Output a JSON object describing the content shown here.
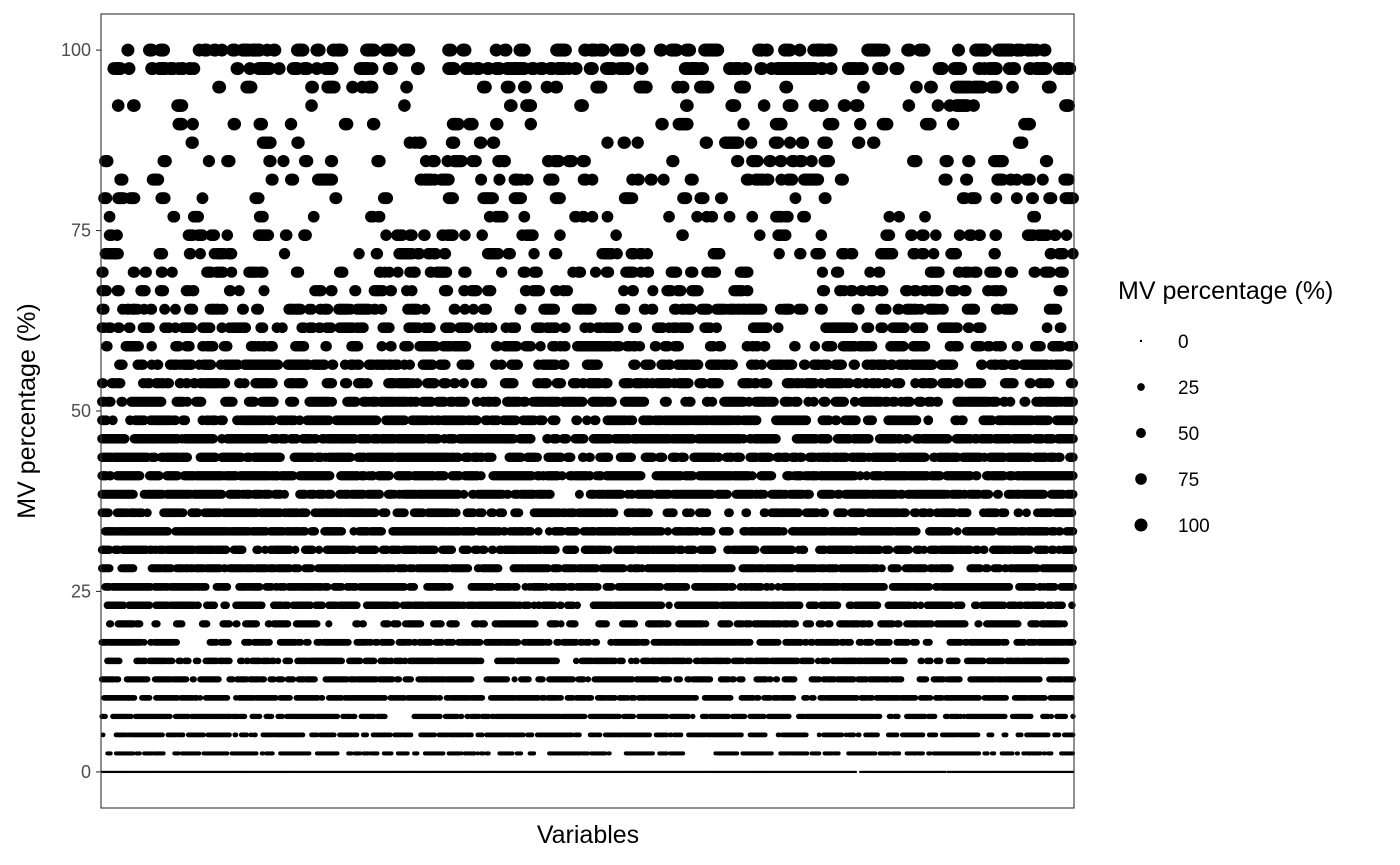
{
  "chart_data": {
    "type": "scatter",
    "title": "",
    "xlabel": "Variables",
    "ylabel": "MV percentage (%)",
    "x_tick_labels": "none",
    "n_variables": 900,
    "ylim": [
      -5,
      105
    ],
    "y_ticks": [
      0,
      25,
      50,
      75,
      100
    ],
    "grid": false,
    "point_color": "#000000",
    "size_encodes": "MV percentage (%)",
    "y_levels": [
      0,
      2.56,
      5.13,
      7.69,
      10.26,
      12.82,
      15.38,
      17.95,
      20.51,
      23.08,
      25.64,
      28.21,
      30.77,
      33.33,
      35.9,
      38.46,
      41.03,
      43.59,
      46.15,
      48.72,
      51.28,
      53.85,
      56.41,
      58.97,
      61.54,
      64.1,
      66.67,
      69.23,
      71.79,
      74.36,
      76.92,
      79.49,
      82.05,
      84.62,
      87.18,
      89.74,
      92.31,
      94.87,
      97.44,
      100
    ],
    "level_density": [
      0.99,
      0.75,
      0.73,
      0.75,
      0.78,
      0.76,
      0.7,
      0.66,
      0.58,
      0.7,
      0.74,
      0.7,
      0.66,
      0.72,
      0.62,
      0.72,
      0.74,
      0.66,
      0.72,
      0.62,
      0.52,
      0.44,
      0.46,
      0.34,
      0.4,
      0.26,
      0.2,
      0.2,
      0.17,
      0.13,
      0.1,
      0.1,
      0.1,
      0.08,
      0.07,
      0.06,
      0.06,
      0.08,
      0.28,
      0.24
    ],
    "legend": {
      "title": "MV percentage (%)",
      "position": "right",
      "entries": [
        "0",
        "25",
        "50",
        "75",
        "100"
      ]
    }
  }
}
